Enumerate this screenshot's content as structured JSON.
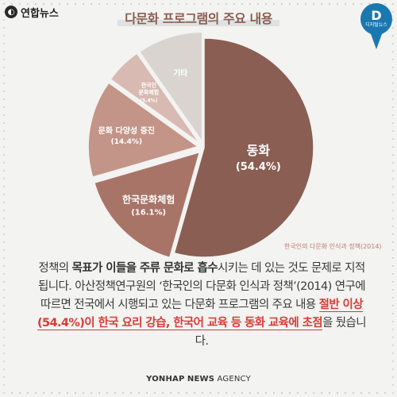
{
  "logo": {
    "name": "연합뉴스"
  },
  "title": "다문화 프로그램의 주요 내용",
  "badge": {
    "letter": "D",
    "sub": "디지털뉴스"
  },
  "chart_data": {
    "type": "pie",
    "title": "다문화 프로그램의 주요 내용",
    "slices": [
      {
        "label": "동화",
        "pct_text": "(54.4%)",
        "value": 54.4,
        "color": "#8a5e52"
      },
      {
        "label": "한국문화체험",
        "pct_text": "(16.1%)",
        "value": 16.1,
        "color": "#a97468"
      },
      {
        "label": "문화 다양성 증진",
        "pct_text": "(14.4%)",
        "value": 14.4,
        "color": "#c39488"
      },
      {
        "label": "한국인 문화체험",
        "pct_text": "(5.4%)",
        "value": 5.4,
        "color": "#d8bab2"
      },
      {
        "label": "기타",
        "pct_text": "",
        "value": 9.7,
        "color": "#d9d4cf"
      }
    ]
  },
  "source": "한국인의 다문화 인식과 정책(2014)",
  "body": {
    "s1": "정책의 ",
    "s2": "목표가 이들을 주류 문화로 흡수",
    "s3": "시키는 데 있는 것도 문제로 지적됩니다. 아산정책연구원의 ‘한국인의 다문화 인식과 정책’(2014) 연구에 따르면 전국에서 시행되고 있는 다문화 프로그램의 주요 내용 ",
    "s4": "절반 이상(54.4%)이 한국 요리 강습, 한국어 교육 등 동화 교육에 초점",
    "s5": "을 뒀습니다."
  },
  "footer": {
    "part1": "YONHAP",
    "part2": "NEWS",
    "part3": "AGENCY"
  }
}
